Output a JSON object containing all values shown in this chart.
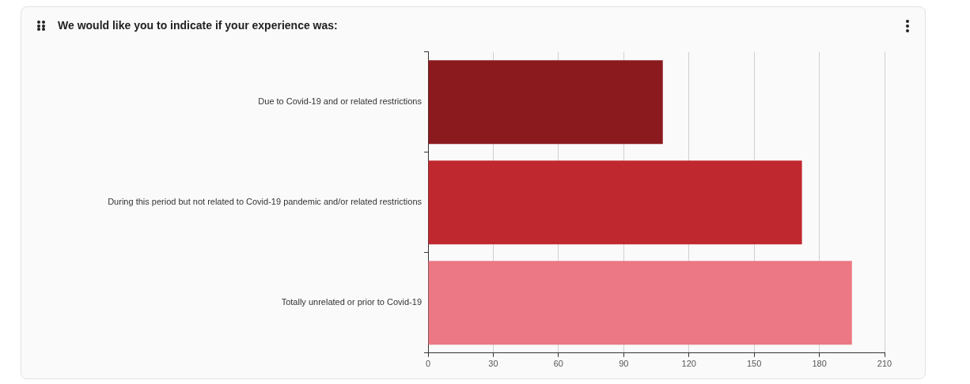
{
  "chart_data": {
    "type": "bar",
    "orientation": "horizontal",
    "title": "We would like you to indicate if your experience was:",
    "categories": [
      "Due to Covid-19 and or related restrictions",
      "During this period but not related to Covid-19 pandemic and/or related restrictions",
      "Totally unrelated or prior to Covid-19"
    ],
    "values": [
      108,
      172,
      195
    ],
    "colors": [
      "#8b1a1f",
      "#c0282f",
      "#eb7884"
    ],
    "xlim": [
      0,
      210
    ],
    "xticks": [
      0,
      30,
      60,
      90,
      120,
      150,
      180,
      210
    ],
    "grid": "x",
    "legend": false
  }
}
